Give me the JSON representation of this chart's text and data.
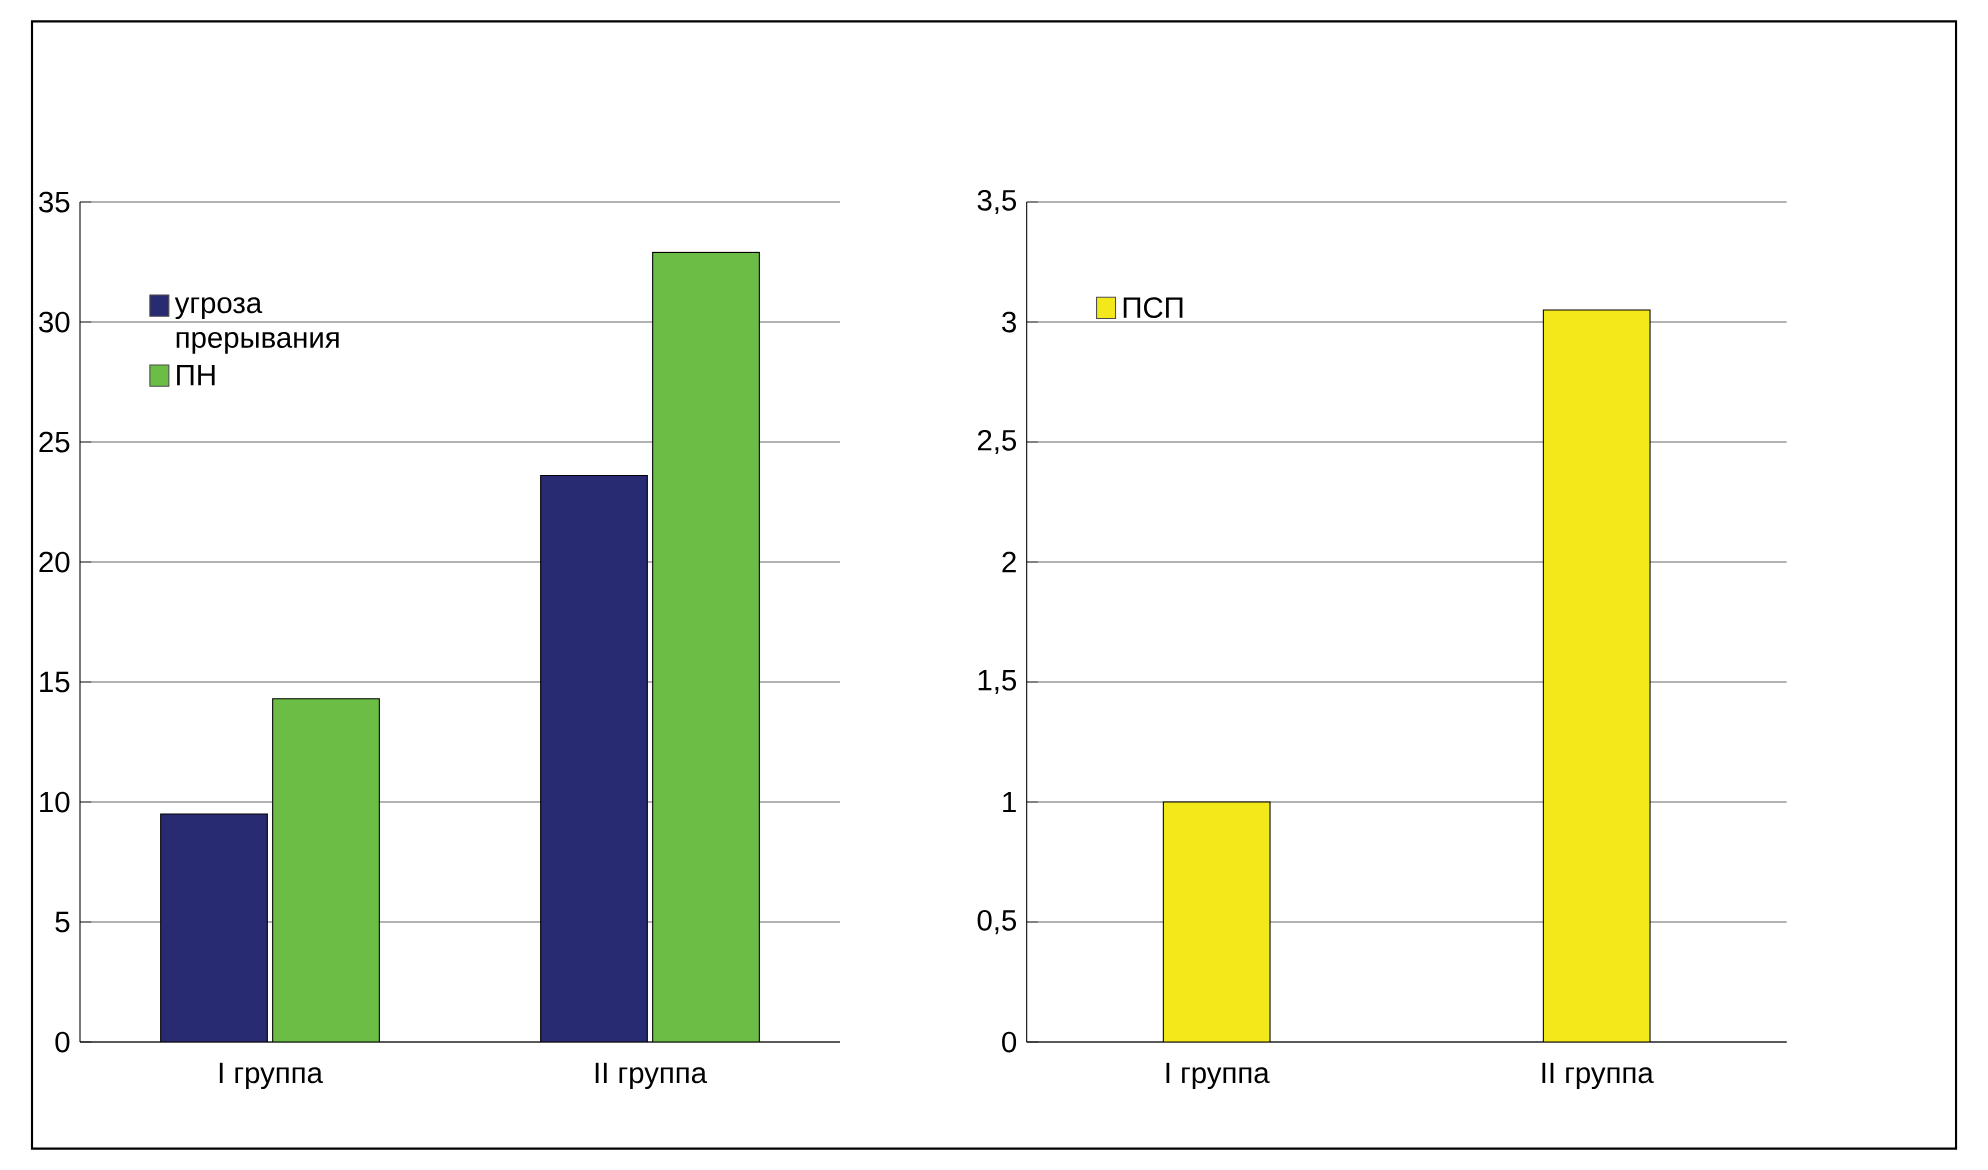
{
  "chart_data": [
    {
      "type": "bar",
      "categories": [
        "I группа",
        "II группа"
      ],
      "series": [
        {
          "name": "угроза прерывания",
          "color": "#282a72",
          "values": [
            9.5,
            23.6
          ]
        },
        {
          "name": "ПН",
          "color": "#6cbd45",
          "values": [
            14.3,
            32.9
          ]
        }
      ],
      "ylim": [
        0,
        35
      ],
      "yticks": [
        0,
        5,
        10,
        15,
        20,
        25,
        30,
        35
      ],
      "grid": "y",
      "legend": "top left"
    },
    {
      "type": "bar",
      "categories": [
        "I группа",
        "II группа"
      ],
      "series": [
        {
          "name": "ПСП",
          "color": "#f2e81a",
          "values": [
            1.0,
            3.05
          ]
        }
      ],
      "ylim": [
        0,
        3.5
      ],
      "yticks": [
        0,
        {
          "value": 0.5,
          "label": "0,5"
        },
        1,
        {
          "value": 1.5,
          "label": "1,5"
        },
        2,
        {
          "value": 2.5,
          "label": "2,5"
        },
        3,
        {
          "value": 3.5,
          "label": "3,5"
        }
      ],
      "grid": "y",
      "legend": "top left"
    }
  ]
}
